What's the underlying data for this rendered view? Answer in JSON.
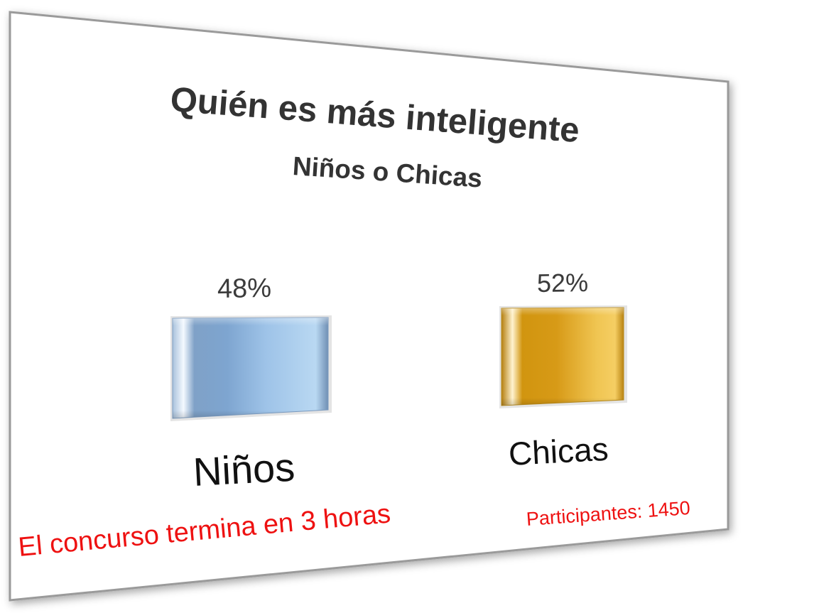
{
  "chart_data": {
    "type": "bar",
    "title": "Quién es más inteligente",
    "subtitle": "Niños o Chicas",
    "categories": [
      "Niños",
      "Chicas"
    ],
    "values": [
      48,
      52
    ],
    "value_labels": [
      "48%",
      "52%"
    ],
    "colors": [
      "#8fb3d9",
      "#d4a21f"
    ],
    "legend": "none",
    "grid": false
  },
  "footer": {
    "participants": "Participantes: 1450",
    "ends": "El concurso termina en 3 horas"
  },
  "colors": {
    "footer_text": "#ee1111",
    "title_text": "#333333",
    "card_border": "#9a9a9a"
  }
}
